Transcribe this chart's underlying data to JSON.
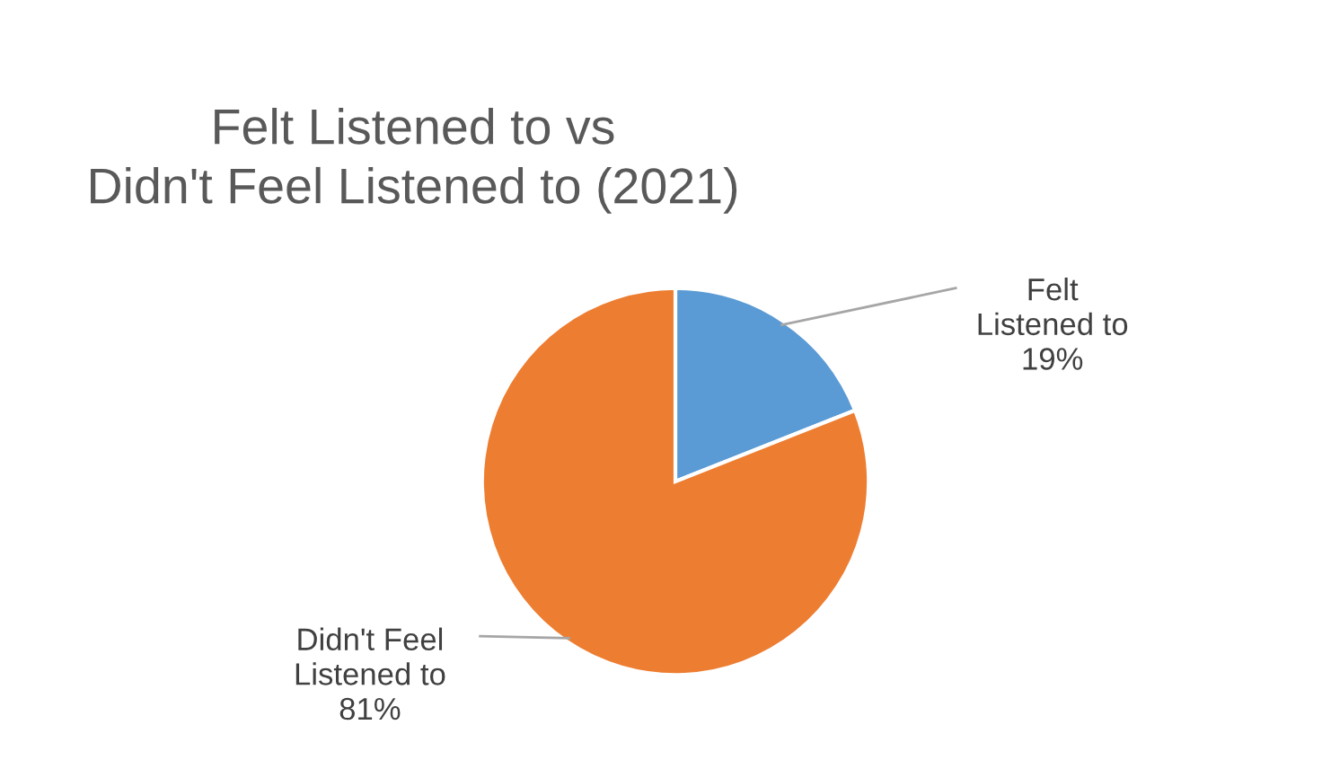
{
  "chart_data": {
    "type": "pie",
    "title": "Felt Listened to vs\nDidn't Feel Listened to (2021)",
    "categories": [
      "Felt\nListened to",
      "Didn't Feel\nListened to"
    ],
    "values": [
      19,
      81
    ],
    "colors": [
      "#5b9bd5",
      "#ed7d31"
    ],
    "value_labels": [
      "19%",
      "81%"
    ],
    "legend": false
  }
}
